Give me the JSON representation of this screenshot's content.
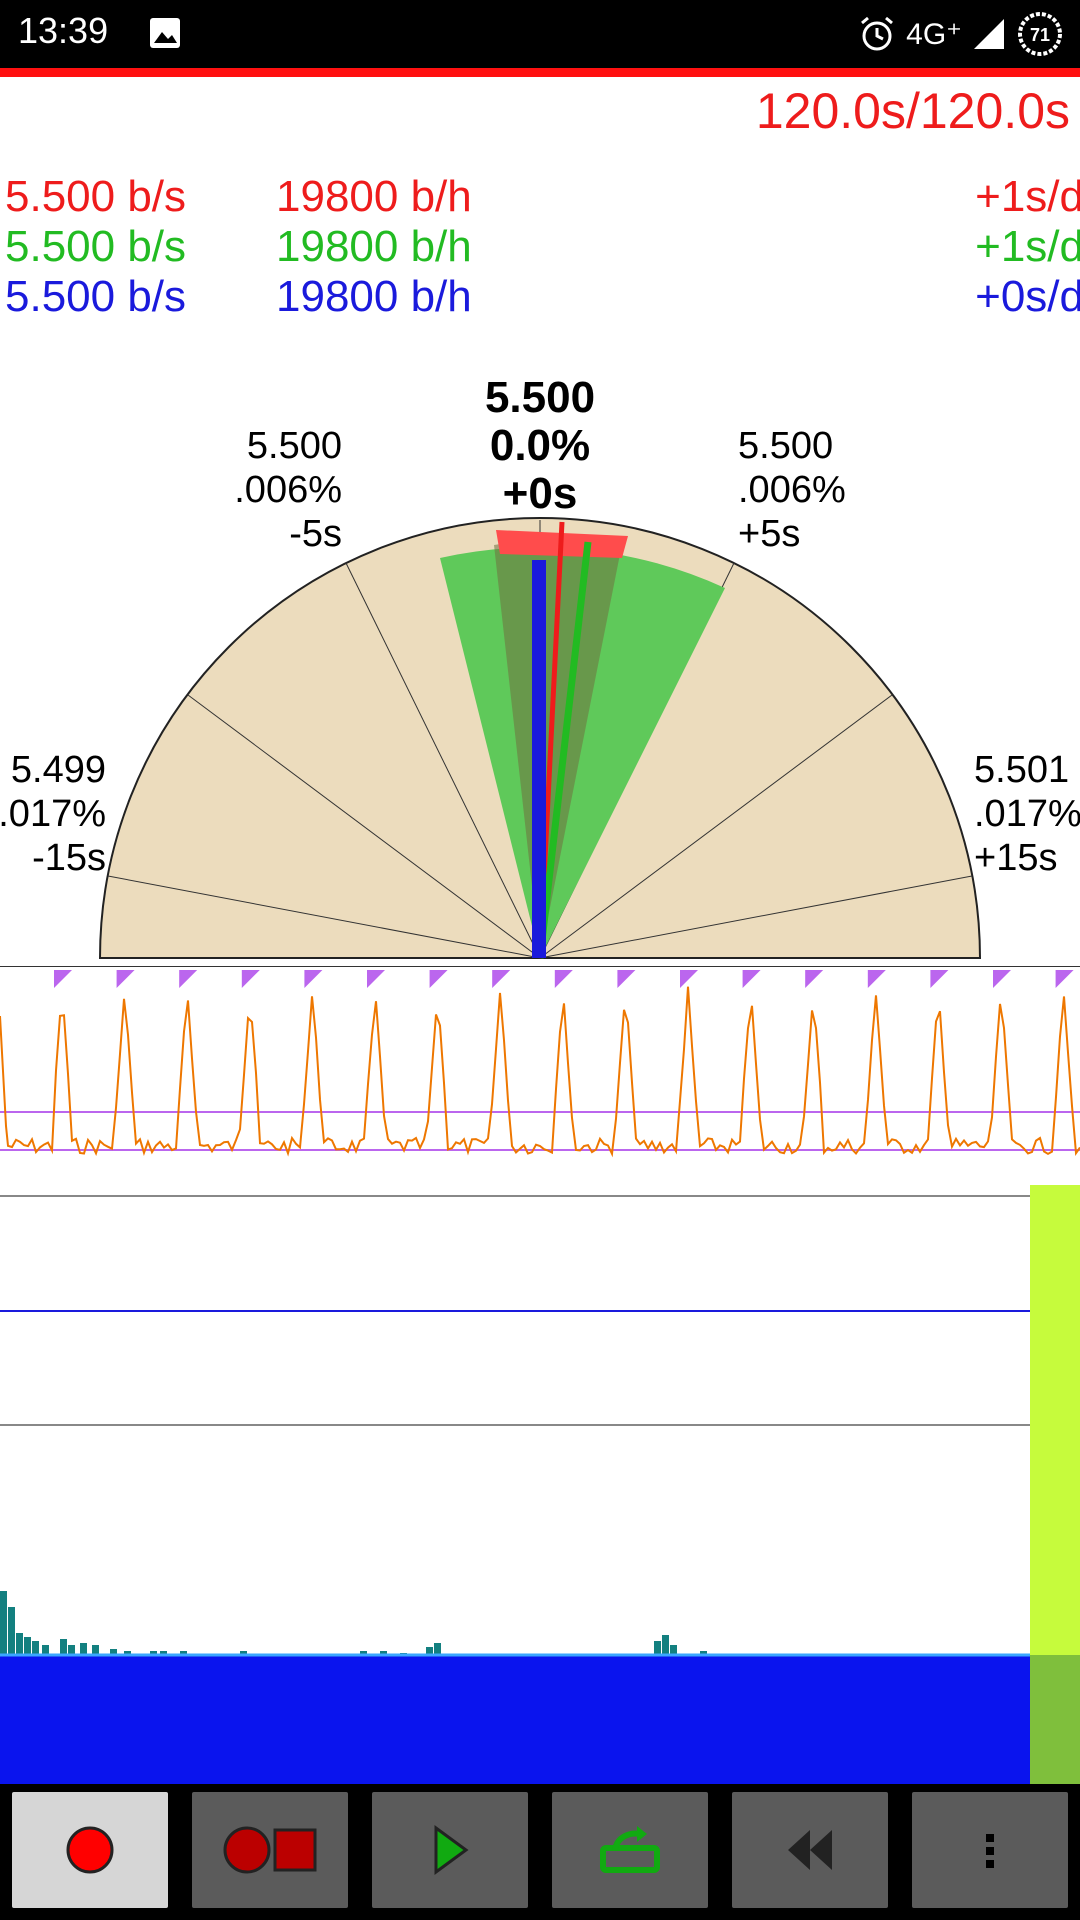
{
  "status": {
    "time": "13:39",
    "network": "4G⁺",
    "battery": "71"
  },
  "timer": "120.0s/120.0s",
  "rates": [
    {
      "bs": "5.500 b/s",
      "bh": "19800 b/h",
      "sd": "+1s/d",
      "color": "#ee1c1c"
    },
    {
      "bs": "5.500 b/s",
      "bh": "19800 b/h",
      "sd": "+1s/d",
      "color": "#22bb22"
    },
    {
      "bs": "5.500 b/s",
      "bh": "19800 b/h",
      "sd": "+0s/d",
      "color": "#1a1adc"
    }
  ],
  "dial": {
    "center": {
      "value": "5.500",
      "pct": "0.0%",
      "offset": "+0s"
    },
    "left_mid": {
      "value": "5.500",
      "pct": ".006%",
      "offset": "-5s"
    },
    "right_mid": {
      "value": "5.500",
      "pct": ".006%",
      "offset": "+5s"
    },
    "left_low": {
      "value": "5.499",
      "pct": ".017%",
      "offset": "-15s"
    },
    "right_low": {
      "value": "5.501",
      "pct": ".017%",
      "offset": "+15s"
    },
    "colors": {
      "face": "#ecdcbd",
      "green": "#5fc95a",
      "red": "#ff4c4c",
      "blue": "#1a1adc"
    }
  },
  "colors": {
    "trace": "#ee7700",
    "marker": "#bb66ee",
    "panel": "#c6fb3c",
    "histogram": "#138080",
    "bottom_band": "#0a14ee"
  },
  "toolbar": [
    {
      "name": "record",
      "icon": "record-icon",
      "active": true
    },
    {
      "name": "record-stop",
      "icon": "record-stop-icon",
      "active": false
    },
    {
      "name": "play",
      "icon": "play-icon",
      "active": false
    },
    {
      "name": "export",
      "icon": "export-icon",
      "active": false
    },
    {
      "name": "rewind",
      "icon": "rewind-icon",
      "active": false
    },
    {
      "name": "more",
      "icon": "more-icon",
      "active": false
    }
  ]
}
